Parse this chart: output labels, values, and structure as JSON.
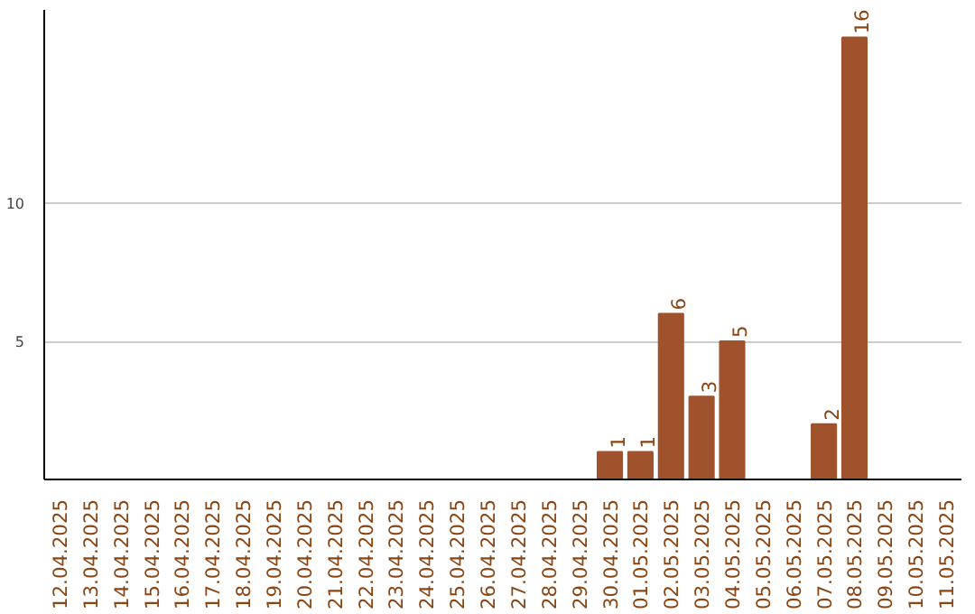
{
  "chart_data": {
    "type": "bar",
    "categories": [
      "12.04.2025",
      "13.04.2025",
      "14.04.2025",
      "15.04.2025",
      "16.04.2025",
      "17.04.2025",
      "18.04.2025",
      "19.04.2025",
      "20.04.2025",
      "21.04.2025",
      "22.04.2025",
      "23.04.2025",
      "24.04.2025",
      "25.04.2025",
      "26.04.2025",
      "27.04.2025",
      "28.04.2025",
      "29.04.2025",
      "30.04.2025",
      "01.05.2025",
      "02.05.2025",
      "03.05.2025",
      "04.05.2025",
      "05.05.2025",
      "06.05.2025",
      "07.05.2025",
      "08.05.2025",
      "09.05.2025",
      "10.05.2025",
      "11.05.2025"
    ],
    "values": [
      0,
      0,
      0,
      0,
      0,
      0,
      0,
      0,
      0,
      0,
      0,
      0,
      0,
      0,
      0,
      0,
      0,
      0,
      1,
      1,
      6,
      3,
      5,
      0,
      0,
      2,
      16,
      0,
      0,
      0
    ],
    "value_labels": [
      null,
      null,
      null,
      null,
      null,
      null,
      null,
      null,
      null,
      null,
      null,
      null,
      null,
      null,
      null,
      null,
      null,
      null,
      "1",
      "1",
      "6",
      "3",
      "5",
      null,
      null,
      "2",
      "16",
      null,
      null,
      null
    ],
    "color": "#a0522d",
    "ylim": [
      0,
      17
    ],
    "yticks": [
      5,
      10
    ],
    "grid": "y"
  }
}
